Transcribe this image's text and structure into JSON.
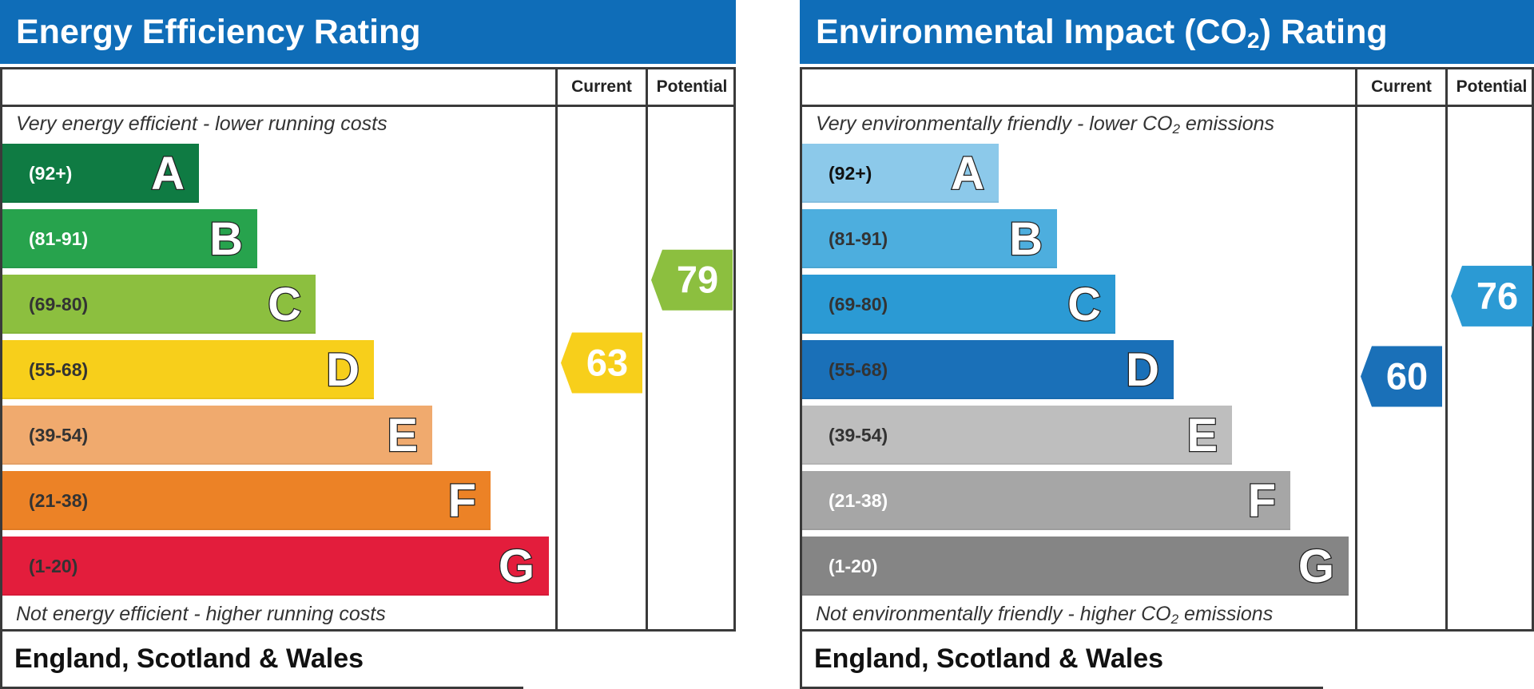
{
  "chart_data": [
    {
      "type": "bar",
      "title": "Energy Efficiency Rating",
      "columns": [
        "Current",
        "Potential"
      ],
      "top_caption": "Very energy efficient - lower running costs",
      "bottom_caption": "Not energy efficient - higher running costs",
      "region": "England, Scotland & Wales",
      "bands": [
        {
          "letter": "A",
          "range": "(92+)",
          "color": "#0f7b43",
          "text_color": "#ffffff"
        },
        {
          "letter": "B",
          "range": "(81-91)",
          "color": "#27a34d",
          "text_color": "#ffffff"
        },
        {
          "letter": "C",
          "range": "(69-80)",
          "color": "#8cbf3f",
          "text_color": "#333333"
        },
        {
          "letter": "D",
          "range": "(55-68)",
          "color": "#f7cf1b",
          "text_color": "#333333"
        },
        {
          "letter": "E",
          "range": "(39-54)",
          "color": "#f0aa6e",
          "text_color": "#333333"
        },
        {
          "letter": "F",
          "range": "(21-38)",
          "color": "#ec8226",
          "text_color": "#333333"
        },
        {
          "letter": "G",
          "range": "(1-20)",
          "color": "#e31d3c",
          "text_color": "#333333"
        }
      ],
      "current": {
        "value": 63,
        "band": "D",
        "color": "#f7cf1b"
      },
      "potential": {
        "value": 79,
        "band": "C",
        "color": "#8cbf3f"
      }
    },
    {
      "type": "bar",
      "title": "Environmental Impact (CO",
      "title_sub": "2",
      "title_end": ") Rating",
      "columns": [
        "Current",
        "Potential"
      ],
      "top_caption": "Very environmentally friendly - lower CO",
      "top_caption_end": " emissions",
      "bottom_caption": "Not environmentally friendly - higher CO",
      "bottom_caption_end": " emissions",
      "caption_sub": "2",
      "region": "England, Scotland & Wales",
      "bands": [
        {
          "letter": "A",
          "range": "(92+)",
          "color": "#8cc9ea",
          "text_color": "#111111"
        },
        {
          "letter": "B",
          "range": "(81-91)",
          "color": "#4daede",
          "text_color": "#333333"
        },
        {
          "letter": "C",
          "range": "(69-80)",
          "color": "#2b9ad4",
          "text_color": "#333333"
        },
        {
          "letter": "D",
          "range": "(55-68)",
          "color": "#1a70b8",
          "text_color": "#333333"
        },
        {
          "letter": "E",
          "range": "(39-54)",
          "color": "#bebebe",
          "text_color": "#333333"
        },
        {
          "letter": "F",
          "range": "(21-38)",
          "color": "#a6a6a6",
          "text_color": "#ffffff"
        },
        {
          "letter": "G",
          "range": "(1-20)",
          "color": "#858585",
          "text_color": "#ffffff"
        }
      ],
      "current": {
        "value": 60,
        "band": "D",
        "color": "#1a70b8"
      },
      "potential": {
        "value": 76,
        "band": "C",
        "color": "#2b9ad4"
      }
    }
  ]
}
